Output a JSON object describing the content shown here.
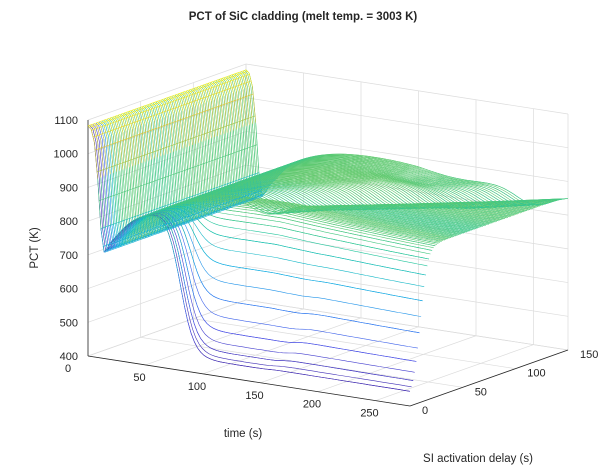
{
  "chart_data": {
    "type": "surface",
    "title": "PCT of SiC cladding (melt temp. = 3003 K)",
    "xlabel": "time (s)",
    "ylabel": "SI activation delay (s)",
    "zlabel": "PCT (K)",
    "xlim": [
      0,
      280
    ],
    "ylim": [
      0,
      150
    ],
    "zlim": [
      400,
      1100
    ],
    "x_ticks": [
      0,
      50,
      100,
      150,
      200,
      250
    ],
    "y_ticks": [
      0,
      50,
      100,
      150
    ],
    "z_ticks": [
      400,
      500,
      600,
      700,
      800,
      900,
      1000,
      1100
    ],
    "grid": true,
    "colormap": [
      "#3e26a8",
      "#4a50e6",
      "#2f80f0",
      "#12aee0",
      "#1fc5a4",
      "#7acb5a",
      "#d9bb2f",
      "#f9fb15"
    ],
    "regimes": [
      {
        "si_delay": 0,
        "time_start": 0,
        "pct": 1080
      },
      {
        "time_start": 8,
        "time_end": 12,
        "pct": 700
      },
      {
        "time_start": 14,
        "time_end": 40,
        "pct": 790
      },
      {
        "time_end": 280,
        "si_delay": 150,
        "pct": 900
      },
      {
        "quench_time_range": [
          155,
          250
        ],
        "pct": 430
      }
    ]
  }
}
